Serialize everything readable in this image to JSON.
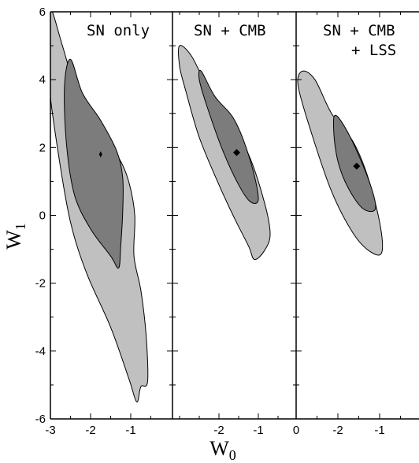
{
  "chart_data": {
    "type": "contour",
    "ylabel": "W",
    "ylabel_sub": "1",
    "xlabel": "W",
    "xlabel_sub": "0",
    "ylim": [
      -6,
      6
    ],
    "y_ticks": [
      "6",
      "4",
      "2",
      "0",
      "-2",
      "-4",
      "-6"
    ],
    "y_tick_values": [
      6,
      4,
      2,
      0,
      -2,
      -4,
      -6
    ],
    "colors": {
      "outer": "#c0c0c0",
      "inner": "#7c7c7c",
      "line": "#000000",
      "point": "#000000"
    },
    "panels": [
      {
        "label_lines": [
          "SN only"
        ],
        "xlim": [
          -3,
          -0.2
        ],
        "x_ticks": [
          "-3",
          "-2",
          "-1"
        ],
        "x_tick_values": [
          -3,
          -2,
          -1
        ],
        "best_fit": {
          "w0": -1.75,
          "w1": 1.8
        },
        "outer": [
          [
            -2.95,
            6.0
          ],
          [
            -2.7,
            5.0
          ],
          [
            -2.3,
            3.5
          ],
          [
            -1.75,
            2.4
          ],
          [
            -1.3,
            1.7
          ],
          [
            -1.05,
            1.0
          ],
          [
            -0.9,
            0.0
          ],
          [
            -0.92,
            -1.2
          ],
          [
            -0.75,
            -2.2
          ],
          [
            -0.62,
            -3.5
          ],
          [
            -0.58,
            -4.9
          ],
          [
            -0.75,
            -5.05
          ],
          [
            -0.85,
            -5.5
          ],
          [
            -1.05,
            -4.8
          ],
          [
            -1.5,
            -3.3
          ],
          [
            -2.1,
            -1.7
          ],
          [
            -2.5,
            -0.2
          ],
          [
            -2.8,
            1.8
          ],
          [
            -3.05,
            4.0
          ],
          [
            -3.05,
            5.0
          ],
          [
            -3.05,
            6.0
          ]
        ],
        "inner": [
          [
            -2.5,
            4.6
          ],
          [
            -2.2,
            3.6
          ],
          [
            -1.75,
            2.8
          ],
          [
            -1.35,
            1.9
          ],
          [
            -1.2,
            1.1
          ],
          [
            -1.2,
            0.1
          ],
          [
            -1.25,
            -0.9
          ],
          [
            -1.3,
            -1.55
          ],
          [
            -1.5,
            -1.2
          ],
          [
            -2.0,
            -0.4
          ],
          [
            -2.4,
            0.6
          ],
          [
            -2.6,
            2.1
          ],
          [
            -2.65,
            3.8
          ]
        ]
      },
      {
        "label_lines": [
          "SN + CMB"
        ],
        "xlim": [
          -3,
          -0.2
        ],
        "x_ticks": [
          "-2",
          "-1"
        ],
        "x_tick_values": [
          -2,
          -1
        ],
        "best_fit": {
          "w0": -1.55,
          "w1": 1.85
        },
        "outer": [
          [
            -3.0,
            5.0
          ],
          [
            -2.7,
            4.7
          ],
          [
            -2.3,
            3.8
          ],
          [
            -1.8,
            2.9
          ],
          [
            -1.25,
            1.8
          ],
          [
            -0.85,
            0.4
          ],
          [
            -0.7,
            -0.55
          ],
          [
            -0.85,
            -1.05
          ],
          [
            -1.1,
            -1.3
          ],
          [
            -1.25,
            -0.9
          ],
          [
            -1.6,
            -0.1
          ],
          [
            -2.0,
            0.9
          ],
          [
            -2.5,
            2.3
          ],
          [
            -2.85,
            3.7
          ],
          [
            -3.0,
            4.4
          ]
        ],
        "inner": [
          [
            -2.45,
            4.25
          ],
          [
            -2.1,
            3.5
          ],
          [
            -1.6,
            2.8
          ],
          [
            -1.2,
            1.6
          ],
          [
            -1.0,
            0.5
          ],
          [
            -1.2,
            0.4
          ],
          [
            -1.5,
            0.9
          ],
          [
            -1.9,
            1.9
          ],
          [
            -2.3,
            3.2
          ],
          [
            -2.5,
            4.0
          ]
        ]
      },
      {
        "label_lines": [
          "SN + CMB",
          "+ LSS"
        ],
        "xlim": [
          0,
          -3
        ],
        "x_ticks": [
          "0",
          "-2",
          "-1"
        ],
        "x_tick_values": [
          0,
          -2,
          -1
        ],
        "best_fit": {
          "w0": -1.55,
          "w1": 1.45
        },
        "outer": [
          [
            -2.85,
            4.25
          ],
          [
            -2.55,
            4.0
          ],
          [
            -2.15,
            3.0
          ],
          [
            -1.65,
            2.2
          ],
          [
            -1.3,
            1.2
          ],
          [
            -1.0,
            -0.2
          ],
          [
            -0.95,
            -1.1
          ],
          [
            -1.25,
            -1.05
          ],
          [
            -1.65,
            -0.5
          ],
          [
            -2.15,
            0.7
          ],
          [
            -2.6,
            2.3
          ],
          [
            -2.95,
            3.8
          ]
        ],
        "inner": [
          [
            -2.05,
            2.95
          ],
          [
            -1.7,
            2.3
          ],
          [
            -1.25,
            1.0
          ],
          [
            -1.1,
            0.2
          ],
          [
            -1.4,
            0.2
          ],
          [
            -1.75,
            0.8
          ],
          [
            -2.0,
            1.6
          ],
          [
            -2.1,
            2.5
          ]
        ]
      }
    ]
  }
}
